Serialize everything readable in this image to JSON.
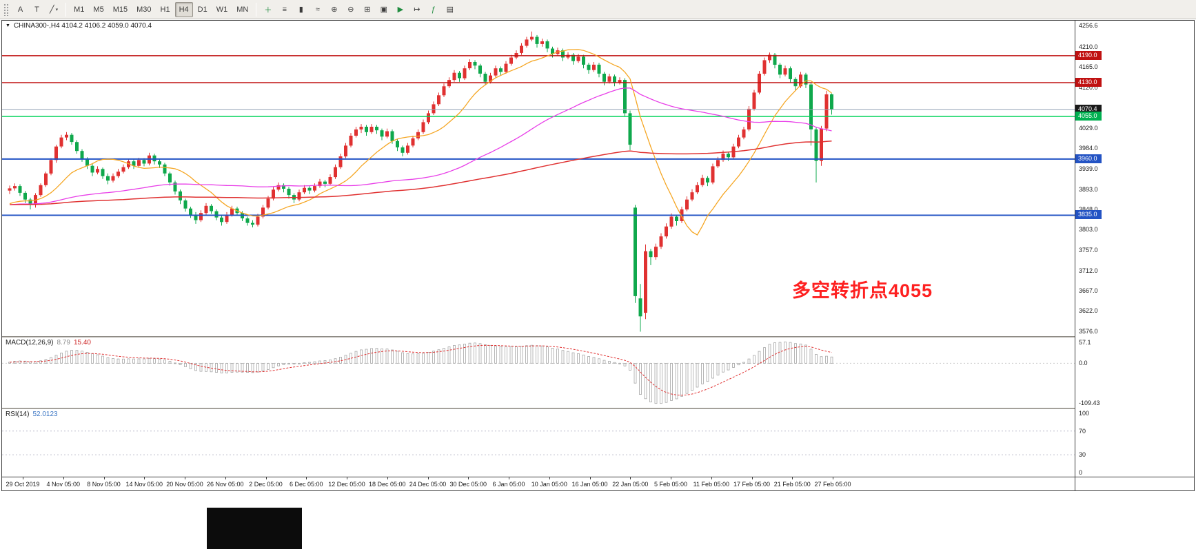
{
  "toolbar": {
    "left_tools": [
      {
        "name": "font-tool",
        "glyph": "A"
      },
      {
        "name": "text-tool",
        "glyph": "T"
      },
      {
        "name": "draw-line-tool",
        "glyph": "╱",
        "dropdown": true
      }
    ],
    "timeframes": [
      "M1",
      "M5",
      "M15",
      "M30",
      "H1",
      "H4",
      "D1",
      "W1",
      "MN"
    ],
    "active_timeframe": "H4",
    "right_tools": [
      {
        "name": "new-order-icon",
        "glyph": "＋",
        "color": "#1f8b3e"
      },
      {
        "name": "bar-chart-mode-icon",
        "glyph": "≡"
      },
      {
        "name": "candlestick-mode-icon",
        "glyph": "▮"
      },
      {
        "name": "line-chart-mode-icon",
        "glyph": "≈"
      },
      {
        "name": "zoom-in-icon",
        "glyph": "⊕"
      },
      {
        "name": "zoom-out-icon",
        "glyph": "⊖"
      },
      {
        "name": "tile-windows-icon",
        "glyph": "⊞"
      },
      {
        "name": "cascade-windows-icon",
        "glyph": "▣"
      },
      {
        "name": "auto-scroll-icon",
        "glyph": "▶",
        "color": "#1f8b3e"
      },
      {
        "name": "chart-shift-icon",
        "glyph": "↦"
      },
      {
        "name": "indicators-icon",
        "glyph": "ƒ",
        "color": "#1f8b3e"
      },
      {
        "name": "templates-icon",
        "glyph": "▤"
      }
    ]
  },
  "chart": {
    "symbol_line": "CHINA300-,H4 4104.2 4106.2 4059.0 4070.4",
    "annotation": "多空转折点4055"
  },
  "indicators": {
    "macd": {
      "name": "MACD(12,26,9)",
      "value_main": "8.79",
      "value_signal": "15.40"
    },
    "rsi": {
      "name": "RSI(14)",
      "value": "52.0123"
    }
  },
  "chart_data": {
    "type": "candlestick",
    "symbol": "CHINA300-",
    "timeframe": "H4",
    "up_color": "#e03131",
    "down_color": "#0fa84c",
    "candle_spacing": 7.5,
    "price_scale": {
      "max": 4268,
      "min": 3566
    },
    "axis_labels": [
      "4256.6",
      "4210.0",
      "4165.0",
      "4120.0",
      "4029.0",
      "3984.0",
      "3939.0",
      "3893.0",
      "3848.0",
      "3803.0",
      "3757.0",
      "3712.0",
      "3667.0",
      "3622.0",
      "3576.0"
    ],
    "price_tags": [
      {
        "value": "4190.0",
        "price": 4190.0,
        "color": "#c01111"
      },
      {
        "value": "4130.0",
        "price": 4130.0,
        "color": "#c01111"
      },
      {
        "value": "4070.4",
        "price": 4070.4,
        "color": "#1a1a1a"
      },
      {
        "value": "4055.0",
        "price": 4055.0,
        "color": "#00b050"
      },
      {
        "value": "3960.0",
        "price": 3960.0,
        "color": "#2353c4"
      },
      {
        "value": "3835.0",
        "price": 3835.0,
        "color": "#2353c4"
      }
    ],
    "levels": [
      {
        "price": 4190.0,
        "color": "#c01111",
        "width": 1.5
      },
      {
        "price": 4130.0,
        "color": "#c01111",
        "width": 1.5
      },
      {
        "price": 4070.4,
        "color": "#90a0b4",
        "width": 1
      },
      {
        "price": 4055.0,
        "color": "#00d45a",
        "width": 1.6
      },
      {
        "price": 3960.0,
        "color": "#2353c4",
        "width": 2
      },
      {
        "price": 3835.0,
        "color": "#2353c4",
        "width": 2
      }
    ],
    "moving_averages": [
      {
        "period": 13,
        "color": "#f5a623",
        "width": 1.3
      },
      {
        "period": 55,
        "color": "#e83ee8",
        "width": 1.3
      },
      {
        "period": 144,
        "color": "#e03131",
        "width": 1.5
      }
    ],
    "ma_seed": 3858,
    "candles": [
      [
        3890,
        3901,
        3882,
        3895
      ],
      [
        3895,
        3906,
        3890,
        3900
      ],
      [
        3900,
        3904,
        3878,
        3885
      ],
      [
        3885,
        3889,
        3862,
        3870
      ],
      [
        3870,
        3874,
        3848,
        3858
      ],
      [
        3858,
        3884,
        3852,
        3880
      ],
      [
        3880,
        3906,
        3876,
        3902
      ],
      [
        3902,
        3932,
        3898,
        3928
      ],
      [
        3928,
        3962,
        3924,
        3958
      ],
      [
        3958,
        3992,
        3952,
        3988
      ],
      [
        3988,
        4014,
        3984,
        4008
      ],
      [
        4008,
        4020,
        4002,
        4014
      ],
      [
        4014,
        4018,
        3992,
        3998
      ],
      [
        3998,
        4002,
        3972,
        3978
      ],
      [
        3978,
        3982,
        3954,
        3960
      ],
      [
        3960,
        3964,
        3938,
        3945
      ],
      [
        3945,
        3950,
        3922,
        3930
      ],
      [
        3930,
        3944,
        3926,
        3938
      ],
      [
        3938,
        3941,
        3916,
        3922
      ],
      [
        3922,
        3928,
        3904,
        3912
      ],
      [
        3912,
        3928,
        3908,
        3922
      ],
      [
        3922,
        3938,
        3918,
        3932
      ],
      [
        3932,
        3948,
        3928,
        3942
      ],
      [
        3942,
        3960,
        3938,
        3955
      ],
      [
        3955,
        3959,
        3938,
        3945
      ],
      [
        3945,
        3963,
        3941,
        3958
      ],
      [
        3958,
        3962,
        3944,
        3950
      ],
      [
        3950,
        3974,
        3946,
        3968
      ],
      [
        3968,
        3972,
        3948,
        3955
      ],
      [
        3955,
        3960,
        3940,
        3948
      ],
      [
        3948,
        3952,
        3922,
        3928
      ],
      [
        3928,
        3932,
        3901,
        3908
      ],
      [
        3908,
        3912,
        3881,
        3888
      ],
      [
        3888,
        3892,
        3860,
        3868
      ],
      [
        3868,
        3872,
        3843,
        3850
      ],
      [
        3850,
        3854,
        3829,
        3836
      ],
      [
        3836,
        3842,
        3816,
        3824
      ],
      [
        3824,
        3846,
        3820,
        3840
      ],
      [
        3840,
        3862,
        3836,
        3856
      ],
      [
        3856,
        3860,
        3838,
        3844
      ],
      [
        3844,
        3848,
        3824,
        3830
      ],
      [
        3830,
        3836,
        3812,
        3820
      ],
      [
        3820,
        3842,
        3816,
        3836
      ],
      [
        3836,
        3856,
        3832,
        3850
      ],
      [
        3850,
        3854,
        3834,
        3840
      ],
      [
        3840,
        3844,
        3822,
        3828
      ],
      [
        3828,
        3832,
        3812,
        3818
      ],
      [
        3818,
        3824,
        3808,
        3814
      ],
      [
        3814,
        3838,
        3810,
        3832
      ],
      [
        3832,
        3858,
        3828,
        3852
      ],
      [
        3852,
        3878,
        3848,
        3872
      ],
      [
        3872,
        3898,
        3868,
        3892
      ],
      [
        3892,
        3908,
        3888,
        3902
      ],
      [
        3902,
        3906,
        3886,
        3894
      ],
      [
        3894,
        3898,
        3872,
        3880
      ],
      [
        3880,
        3884,
        3862,
        3870
      ],
      [
        3870,
        3892,
        3866,
        3886
      ],
      [
        3886,
        3902,
        3882,
        3896
      ],
      [
        3896,
        3900,
        3882,
        3890
      ],
      [
        3890,
        3906,
        3886,
        3900
      ],
      [
        3900,
        3916,
        3896,
        3910
      ],
      [
        3910,
        3914,
        3897,
        3905
      ],
      [
        3905,
        3926,
        3901,
        3920
      ],
      [
        3920,
        3948,
        3916,
        3942
      ],
      [
        3942,
        3972,
        3938,
        3966
      ],
      [
        3966,
        3996,
        3962,
        3990
      ],
      [
        3990,
        4018,
        3986,
        4012
      ],
      [
        4012,
        4032,
        4008,
        4026
      ],
      [
        4026,
        4038,
        4018,
        4032
      ],
      [
        4032,
        4036,
        4012,
        4020
      ],
      [
        4020,
        4038,
        4016,
        4032
      ],
      [
        4032,
        4036,
        4016,
        4024
      ],
      [
        4024,
        4028,
        4002,
        4010
      ],
      [
        4010,
        4028,
        4006,
        4022
      ],
      [
        4022,
        4026,
        3994,
        4000
      ],
      [
        4000,
        4004,
        3978,
        3986
      ],
      [
        3986,
        3990,
        3966,
        3974
      ],
      [
        3974,
        3996,
        3970,
        3990
      ],
      [
        3990,
        4012,
        3986,
        4006
      ],
      [
        4006,
        4026,
        4002,
        4020
      ],
      [
        4020,
        4048,
        4016,
        4042
      ],
      [
        4042,
        4068,
        4038,
        4062
      ],
      [
        4062,
        4088,
        4058,
        4082
      ],
      [
        4082,
        4108,
        4078,
        4102
      ],
      [
        4102,
        4128,
        4098,
        4122
      ],
      [
        4122,
        4142,
        4118,
        4136
      ],
      [
        4136,
        4158,
        4132,
        4152
      ],
      [
        4152,
        4156,
        4132,
        4140
      ],
      [
        4140,
        4168,
        4136,
        4162
      ],
      [
        4162,
        4182,
        4158,
        4176
      ],
      [
        4176,
        4180,
        4160,
        4168
      ],
      [
        4168,
        4172,
        4142,
        4150
      ],
      [
        4150,
        4154,
        4124,
        4132
      ],
      [
        4132,
        4152,
        4128,
        4146
      ],
      [
        4146,
        4168,
        4142,
        4162
      ],
      [
        4162,
        4166,
        4146,
        4154
      ],
      [
        4154,
        4178,
        4150,
        4172
      ],
      [
        4172,
        4192,
        4168,
        4186
      ],
      [
        4186,
        4202,
        4182,
        4196
      ],
      [
        4196,
        4218,
        4192,
        4212
      ],
      [
        4212,
        4232,
        4208,
        4226
      ],
      [
        4226,
        4244,
        4222,
        4232
      ],
      [
        4232,
        4236,
        4208,
        4216
      ],
      [
        4216,
        4228,
        4210,
        4222
      ],
      [
        4222,
        4226,
        4198,
        4206
      ],
      [
        4206,
        4210,
        4186,
        4194
      ],
      [
        4194,
        4208,
        4190,
        4202
      ],
      [
        4202,
        4206,
        4178,
        4186
      ],
      [
        4186,
        4198,
        4182,
        4192
      ],
      [
        4192,
        4196,
        4170,
        4178
      ],
      [
        4178,
        4194,
        4174,
        4188
      ],
      [
        4188,
        4192,
        4162,
        4170
      ],
      [
        4170,
        4174,
        4150,
        4158
      ],
      [
        4158,
        4176,
        4154,
        4170
      ],
      [
        4170,
        4174,
        4142,
        4150
      ],
      [
        4150,
        4154,
        4124,
        4132
      ],
      [
        4132,
        4150,
        4128,
        4144
      ],
      [
        4144,
        4148,
        4122,
        4130
      ],
      [
        4130,
        4142,
        4126,
        4136
      ],
      [
        4136,
        4140,
        4054,
        4062
      ],
      [
        4062,
        4068,
        3980,
        3992
      ],
      [
        3852,
        3858,
        3640,
        3655
      ],
      [
        3650,
        3682,
        3576,
        3610
      ],
      [
        3618,
        3770,
        3604,
        3755
      ],
      [
        3755,
        3760,
        3724,
        3742
      ],
      [
        3742,
        3772,
        3736,
        3765
      ],
      [
        3765,
        3795,
        3760,
        3788
      ],
      [
        3788,
        3817,
        3783,
        3810
      ],
      [
        3810,
        3839,
        3805,
        3832
      ],
      [
        3832,
        3836,
        3812,
        3822
      ],
      [
        3822,
        3854,
        3818,
        3848
      ],
      [
        3848,
        3877,
        3844,
        3870
      ],
      [
        3870,
        3893,
        3866,
        3886
      ],
      [
        3886,
        3909,
        3882,
        3902
      ],
      [
        3902,
        3925,
        3898,
        3918
      ],
      [
        3918,
        3922,
        3900,
        3908
      ],
      [
        3908,
        3950,
        3904,
        3944
      ],
      [
        3944,
        3965,
        3940,
        3958
      ],
      [
        3958,
        3979,
        3954,
        3972
      ],
      [
        3972,
        3976,
        3956,
        3964
      ],
      [
        3964,
        3994,
        3960,
        3988
      ],
      [
        3988,
        4014,
        3984,
        4008
      ],
      [
        4008,
        4032,
        4004,
        4026
      ],
      [
        4026,
        4078,
        4022,
        4072
      ],
      [
        4072,
        4114,
        4068,
        4108
      ],
      [
        4108,
        4156,
        4104,
        4150
      ],
      [
        4150,
        4186,
        4146,
        4180
      ],
      [
        4180,
        4197,
        4174,
        4192
      ],
      [
        4192,
        4196,
        4162,
        4170
      ],
      [
        4170,
        4174,
        4140,
        4148
      ],
      [
        4148,
        4168,
        4144,
        4162
      ],
      [
        4162,
        4166,
        4130,
        4138
      ],
      [
        4138,
        4142,
        4112,
        4122
      ],
      [
        4122,
        4154,
        4118,
        4148
      ],
      [
        4148,
        4152,
        4118,
        4126
      ],
      [
        4126,
        4130,
        3990,
        4026
      ],
      [
        4026,
        4032,
        3908,
        3956
      ],
      [
        3956,
        4034,
        3945,
        4028
      ],
      [
        4028,
        4112,
        4022,
        4104
      ],
      [
        4104.2,
        4106.2,
        4059.0,
        4070.4
      ]
    ],
    "dates": [
      "29 Oct 2019",
      "4 Nov 05:00",
      "8 Nov 05:00",
      "14 Nov 05:00",
      "20 Nov 05:00",
      "26 Nov 05:00",
      "2 Dec 05:00",
      "6 Dec 05:00",
      "12 Dec 05:00",
      "18 Dec 05:00",
      "24 Dec 05:00",
      "30 Dec 05:00",
      "6 Jan 05:00",
      "10 Jan 05:00",
      "16 Jan 05:00",
      "22 Jan 05:00",
      "5 Feb 05:00",
      "11 Feb 05:00",
      "17 Feb 05:00",
      "21 Feb 05:00",
      "27 Feb 05:00"
    ],
    "macd": {
      "params": "12,26,9",
      "axis_labels": [
        "57.1",
        "0.0",
        "-109.43"
      ]
    },
    "rsi": {
      "params": "14",
      "levels": [
        70,
        30
      ],
      "axis_labels": [
        "100",
        "70",
        "30",
        "0"
      ]
    }
  }
}
